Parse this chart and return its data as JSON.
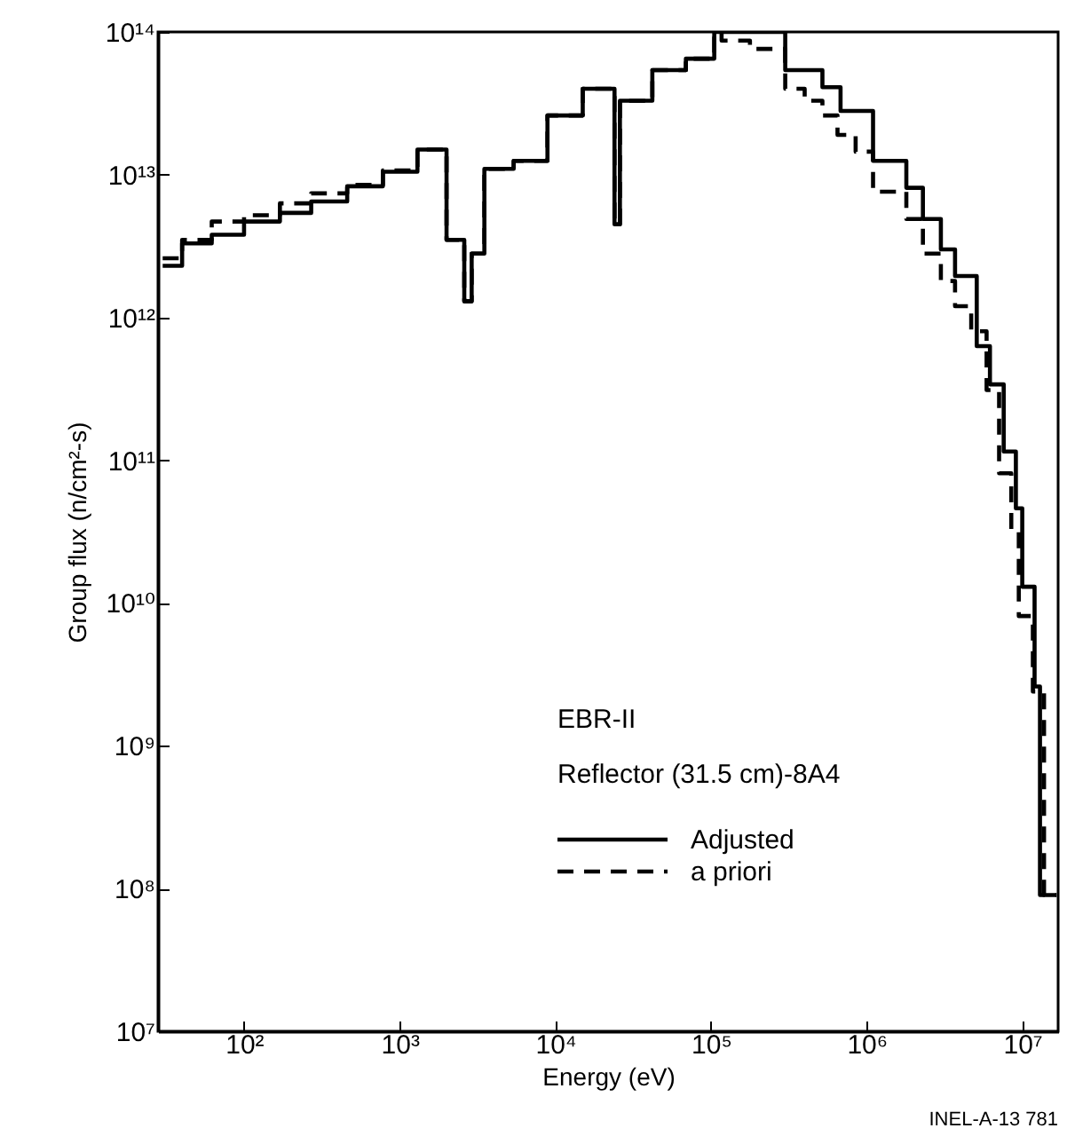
{
  "chart_data": {
    "type": "step",
    "xlabel": "Energy (eV)",
    "ylabel": "Group flux (n/cm²-s)",
    "log": "xy",
    "grid": false,
    "legend": "bottom",
    "xlim": [
      28,
      17000000
    ],
    "ylim": [
      10000000,
      100000000000000
    ],
    "xticks": [
      {
        "value": 100,
        "label": "10²"
      },
      {
        "value": 1000,
        "label": "10³"
      },
      {
        "value": 10000,
        "label": "10⁴"
      },
      {
        "value": 100000,
        "label": "10⁵"
      },
      {
        "value": 1000000,
        "label": "10⁶"
      },
      {
        "value": 10000000,
        "label": "10⁷"
      }
    ],
    "yticks": [
      {
        "value": 10000000,
        "label": "10⁷"
      },
      {
        "value": 100000000,
        "label": "10⁸"
      },
      {
        "value": 1000000000,
        "label": "10⁹"
      },
      {
        "value": 10000000000,
        "label": "10¹⁰"
      },
      {
        "value": 100000000000,
        "label": "10¹¹"
      },
      {
        "value": 1000000000000,
        "label": "10¹²"
      },
      {
        "value": 10000000000000,
        "label": "10¹³"
      },
      {
        "value": 100000000000000,
        "label": "10¹⁴"
      }
    ],
    "annotations": [
      "EBR-II",
      "Reflector (31.5 cm)-8A4",
      "INEL-A-13 781"
    ],
    "series": [
      {
        "name": "Adjusted",
        "color": "#000000",
        "line_style": "solid",
        "x": [
          30,
          40,
          62,
          100,
          170,
          270,
          460,
          780,
          1300,
          2000,
          2600,
          2900,
          3500,
          5400,
          8900,
          15000,
          24000,
          26000,
          42000,
          69000,
          105000,
          300000,
          520000,
          680000,
          1100000,
          1800000,
          2300000,
          3000000,
          3700000,
          5100000,
          6200000,
          7600000,
          9100000,
          10000000,
          12000000,
          13000000,
          16600000
        ],
        "values": [
          2300000000000.0,
          3300000000000.0,
          3800000000000.0,
          4700000000000.0,
          5400000000000.0,
          6500000000000.0,
          8300000000000.0,
          10500000000000.0,
          15000000000000.0,
          3500000000000.0,
          1300000000000.0,
          2800000000000.0,
          11000000000000.0,
          12500000000000.0,
          26000000000000.0,
          40000000000000.0,
          4500000000000.0,
          33000000000000.0,
          54000000000000.0,
          65000000000000.0,
          100000000000000.0,
          54000000000000.0,
          41000000000000.0,
          28000000000000.0,
          12500000000000.0,
          8100000000000.0,
          4900000000000.0,
          3000000000000.0,
          1950000000000.0,
          630000000000.0,
          340000000000.0,
          115000000000.0,
          46000000000.0,
          13000000000.0,
          2600000000.0,
          90000000.0,
          90000000.0
        ]
      },
      {
        "name": "a priori",
        "color": "#000000",
        "line_style": "dashed",
        "x": [
          30,
          40,
          62,
          100,
          170,
          270,
          460,
          780,
          1300,
          2000,
          2600,
          2900,
          3500,
          5400,
          8900,
          15000,
          24000,
          26000,
          42000,
          69000,
          105000,
          117000,
          178000,
          300000,
          400000,
          520000,
          650000,
          850000,
          1100000,
          1800000,
          2300000,
          3000000,
          3700000,
          4700000,
          5900000,
          7100000,
          8500000,
          9500000,
          11700000,
          13800000,
          16600000
        ],
        "values": [
          2600000000000.0,
          3500000000000.0,
          4700000000000.0,
          5200000000000.0,
          6300000000000.0,
          7400000000000.0,
          8500000000000.0,
          10700000000000.0,
          15000000000000.0,
          3500000000000.0,
          1300000000000.0,
          2800000000000.0,
          11000000000000.0,
          12500000000000.0,
          26000000000000.0,
          40000000000000.0,
          4500000000000.0,
          33000000000000.0,
          54000000000000.0,
          65000000000000.0,
          100000000000000.0,
          87000000000000.0,
          76000000000000.0,
          40000000000000.0,
          33000000000000.0,
          26000000000000.0,
          19000000000000.0,
          14500000000000.0,
          7600000000000.0,
          4900000000000.0,
          2800000000000.0,
          1800000000000.0,
          1200000000000.0,
          800000000000.0,
          310000000000.0,
          81000000000.0,
          32000000000.0,
          8100000000.0,
          2400000000.0,
          90000000.0,
          90000000.0
        ]
      }
    ]
  }
}
